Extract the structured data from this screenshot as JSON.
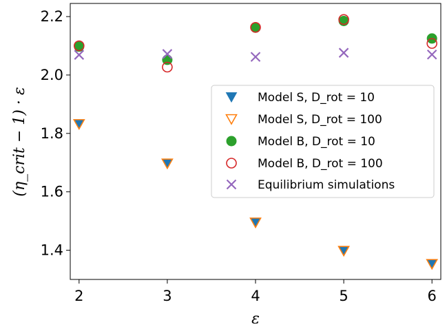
{
  "chart_data": {
    "type": "scatter",
    "xlabel": "ε",
    "ylabel": "(η_crit − 1) · ε",
    "xlim": [
      1.9,
      6.1
    ],
    "ylim": [
      1.3,
      2.245
    ],
    "x_ticks": [
      2,
      3,
      4,
      5,
      6
    ],
    "y_ticks": [
      1.4,
      1.6,
      1.8,
      2.0,
      2.2
    ],
    "y_tick_labels": [
      "1.4",
      "1.6",
      "1.8",
      "2.0",
      "2.2"
    ],
    "legend_position": "center-right",
    "grid": false,
    "series": [
      {
        "name": "Model S, D_rot = 10",
        "marker": "triangle-down-filled",
        "color": "#1f77b4",
        "x": [
          2,
          3,
          4,
          5,
          6
        ],
        "y": [
          1.832,
          1.697,
          1.495,
          1.398,
          1.353
        ]
      },
      {
        "name": "Model S, D_rot = 100",
        "marker": "triangle-down-open",
        "color": "#ff7f0e",
        "x": [
          2,
          3,
          4,
          5,
          6
        ],
        "y": [
          1.832,
          1.697,
          1.495,
          1.398,
          1.353
        ]
      },
      {
        "name": "Model B, D_rot = 10",
        "marker": "circle-filled",
        "color": "#2ca02c",
        "x": [
          2,
          3,
          4,
          5,
          6
        ],
        "y": [
          2.097,
          2.052,
          2.162,
          2.185,
          2.125
        ]
      },
      {
        "name": "Model B, D_rot = 100",
        "marker": "circle-open",
        "color": "#d62728",
        "x": [
          2,
          3,
          4,
          5,
          6
        ],
        "y": [
          2.1,
          2.027,
          2.163,
          2.19,
          2.108
        ]
      },
      {
        "name": "Equilibrium simulations",
        "marker": "x",
        "color": "#9467bd",
        "x": [
          2,
          3,
          4,
          5,
          6
        ],
        "y": [
          2.069,
          2.072,
          2.062,
          2.076,
          2.07
        ]
      }
    ]
  }
}
